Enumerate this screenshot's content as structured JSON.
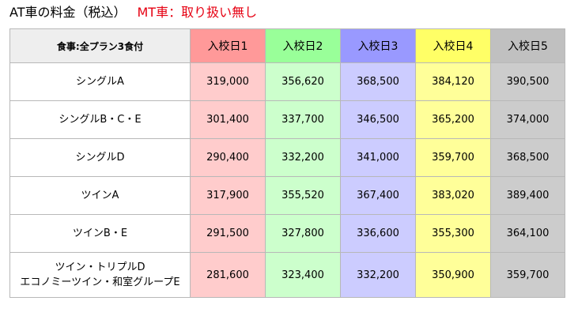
{
  "heading": {
    "at_label": "AT車の料金（税込）",
    "mt_label": "MT車：取り扱い無し",
    "mt_color": "#e60012"
  },
  "table": {
    "corner_label": "食事:全プラン3食付",
    "columns": [
      {
        "label": "入校日1",
        "header_color": "#ff9999",
        "cell_color": "#ffcccc"
      },
      {
        "label": "入校日2",
        "header_color": "#99ff99",
        "cell_color": "#ccffcc"
      },
      {
        "label": "入校日3",
        "header_color": "#9999ff",
        "cell_color": "#ccccff"
      },
      {
        "label": "入校日4",
        "header_color": "#ffff66",
        "cell_color": "#ffff99"
      },
      {
        "label": "入校日5",
        "header_color": "#c0c0c0",
        "cell_color": "#cccccc"
      }
    ],
    "rows": [
      {
        "label": [
          "シングルA"
        ],
        "values": [
          "319,000",
          "356,620",
          "368,500",
          "384,120",
          "390,500"
        ]
      },
      {
        "label": [
          "シングルB・C・E"
        ],
        "values": [
          "301,400",
          "337,700",
          "346,500",
          "365,200",
          "374,000"
        ]
      },
      {
        "label": [
          "シングルD"
        ],
        "values": [
          "290,400",
          "332,200",
          "341,000",
          "359,700",
          "368,500"
        ]
      },
      {
        "label": [
          "ツインA"
        ],
        "values": [
          "317,900",
          "355,520",
          "367,400",
          "383,020",
          "389,400"
        ]
      },
      {
        "label": [
          "ツインB・E"
        ],
        "values": [
          "291,500",
          "327,800",
          "336,600",
          "355,300",
          "364,100"
        ]
      },
      {
        "label": [
          "ツイン・トリプルD",
          "エコノミーツイン・和室グループE"
        ],
        "values": [
          "281,600",
          "323,400",
          "332,200",
          "350,900",
          "359,700"
        ]
      }
    ]
  }
}
